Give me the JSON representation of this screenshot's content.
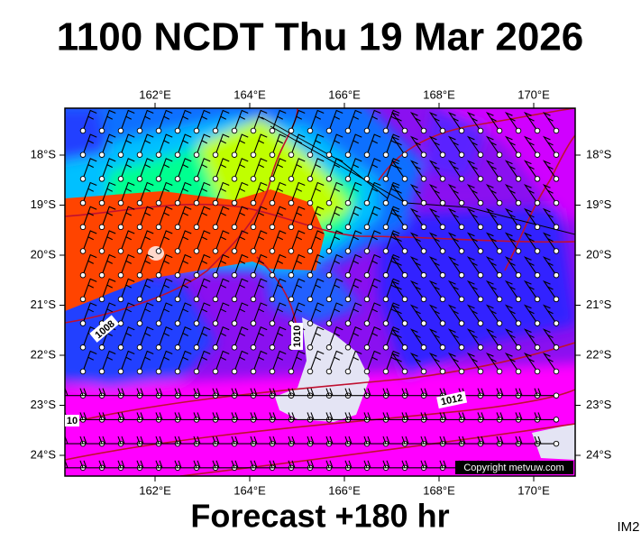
{
  "header": {
    "title": "1100 NCDT Thu 19 Mar 2026"
  },
  "map": {
    "lon_ticks": [
      "162°E",
      "164°E",
      "166°E",
      "168°E",
      "170°E"
    ],
    "lat_ticks": [
      "18°S",
      "19°S",
      "20°S",
      "21°S",
      "22°S",
      "23°S",
      "24°S"
    ],
    "isobar_labels": [
      "1008",
      "1010",
      "10",
      "1012"
    ],
    "copyright": "Copyright metvuw.com"
  },
  "footer": {
    "forecast": "Forecast +180 hr",
    "code": "IM2"
  }
}
